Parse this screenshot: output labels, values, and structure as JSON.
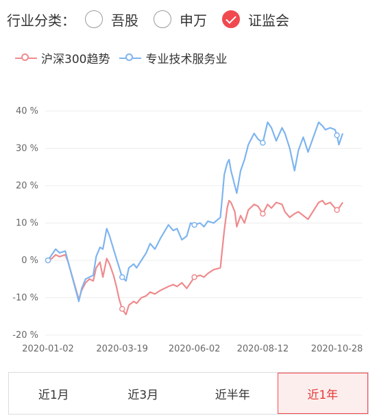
{
  "filter": {
    "title": "行业分类：",
    "options": [
      {
        "label": "吾股",
        "selected": false
      },
      {
        "label": "申万",
        "selected": false
      },
      {
        "label": "证监会",
        "selected": true
      }
    ]
  },
  "legend": [
    {
      "name": "沪深300趋势",
      "color": "#ef8a8d"
    },
    {
      "name": "专业技术服务业",
      "color": "#7db4ef"
    }
  ],
  "chart_data": {
    "type": "line",
    "title": "",
    "xlabel": "",
    "ylabel": "",
    "x_ticks": [
      "2020-01-02",
      "2020-03-19",
      "2020-06-02",
      "2020-08-12",
      "2020-10-28"
    ],
    "y_ticks": [
      40,
      30,
      20,
      10,
      0,
      -10,
      -20
    ],
    "y_tick_labels": [
      "40 %",
      "30 %",
      "20 %",
      "10 %",
      "0 %",
      "-10 %",
      "-20 %"
    ],
    "ylim": [
      -20,
      40
    ],
    "grid": true,
    "series": [
      {
        "name": "沪深300趋势",
        "color": "#ef8a8d",
        "points": [
          [
            "2020-01-02",
            0
          ],
          [
            "2020-01-06",
            0.5
          ],
          [
            "2020-01-10",
            1.5
          ],
          [
            "2020-01-14",
            1
          ],
          [
            "2020-01-20",
            1.5
          ],
          [
            "2020-01-23",
            -0.5
          ],
          [
            "2020-02-03",
            -10.5
          ],
          [
            "2020-02-06",
            -8
          ],
          [
            "2020-02-10",
            -6
          ],
          [
            "2020-02-14",
            -5
          ],
          [
            "2020-02-18",
            -5.5
          ],
          [
            "2020-02-21",
            -2
          ],
          [
            "2020-02-25",
            -0.5
          ],
          [
            "2020-02-28",
            -4.5
          ],
          [
            "2020-03-03",
            0.5
          ],
          [
            "2020-03-06",
            -1
          ],
          [
            "2020-03-10",
            -4
          ],
          [
            "2020-03-13",
            -7
          ],
          [
            "2020-03-16",
            -10.5
          ],
          [
            "2020-03-19",
            -13
          ],
          [
            "2020-03-23",
            -14.5
          ],
          [
            "2020-03-26",
            -12
          ],
          [
            "2020-03-31",
            -11
          ],
          [
            "2020-04-03",
            -11.5
          ],
          [
            "2020-04-08",
            -10
          ],
          [
            "2020-04-13",
            -9.5
          ],
          [
            "2020-04-17",
            -8.5
          ],
          [
            "2020-04-22",
            -9
          ],
          [
            "2020-04-28",
            -8
          ],
          [
            "2020-05-06",
            -7
          ],
          [
            "2020-05-11",
            -6.5
          ],
          [
            "2020-05-15",
            -7
          ],
          [
            "2020-05-20",
            -6
          ],
          [
            "2020-05-25",
            -7.5
          ],
          [
            "2020-05-29",
            -6
          ],
          [
            "2020-06-02",
            -4.5
          ],
          [
            "2020-06-08",
            -4
          ],
          [
            "2020-06-12",
            -4.5
          ],
          [
            "2020-06-16",
            -3.5
          ],
          [
            "2020-06-22",
            -2.5
          ],
          [
            "2020-06-29",
            -2
          ],
          [
            "2020-07-01",
            3
          ],
          [
            "2020-07-03",
            8
          ],
          [
            "2020-07-06",
            14
          ],
          [
            "2020-07-08",
            16
          ],
          [
            "2020-07-10",
            15.5
          ],
          [
            "2020-07-14",
            13
          ],
          [
            "2020-07-16",
            9
          ],
          [
            "2020-07-20",
            12
          ],
          [
            "2020-07-24",
            10
          ],
          [
            "2020-07-28",
            13.5
          ],
          [
            "2020-08-03",
            15
          ],
          [
            "2020-08-07",
            14.5
          ],
          [
            "2020-08-12",
            12.5
          ],
          [
            "2020-08-17",
            15
          ],
          [
            "2020-08-21",
            14
          ],
          [
            "2020-08-26",
            15.5
          ],
          [
            "2020-09-01",
            15
          ],
          [
            "2020-09-04",
            13
          ],
          [
            "2020-09-09",
            11.5
          ],
          [
            "2020-09-14",
            12.5
          ],
          [
            "2020-09-18",
            13
          ],
          [
            "2020-09-23",
            12
          ],
          [
            "2020-09-28",
            11
          ],
          [
            "2020-10-09",
            15.5
          ],
          [
            "2020-10-13",
            16
          ],
          [
            "2020-10-16",
            15
          ],
          [
            "2020-10-21",
            15.5
          ],
          [
            "2020-10-26",
            14
          ],
          [
            "2020-10-28",
            13.5
          ],
          [
            "2020-10-30",
            14
          ],
          [
            "2020-11-03",
            15.5
          ]
        ],
        "markers": [
          [
            "2020-01-02",
            0
          ],
          [
            "2020-03-19",
            -13
          ],
          [
            "2020-06-02",
            -4.5
          ],
          [
            "2020-08-12",
            12.5
          ],
          [
            "2020-10-28",
            13.5
          ]
        ]
      },
      {
        "name": "专业技术服务业",
        "color": "#7db4ef",
        "points": [
          [
            "2020-01-02",
            0
          ],
          [
            "2020-01-06",
            1.5
          ],
          [
            "2020-01-10",
            3
          ],
          [
            "2020-01-14",
            2
          ],
          [
            "2020-01-20",
            2.5
          ],
          [
            "2020-01-23",
            -0.5
          ],
          [
            "2020-02-03",
            -11
          ],
          [
            "2020-02-06",
            -7.5
          ],
          [
            "2020-02-10",
            -5
          ],
          [
            "2020-02-14",
            -4.5
          ],
          [
            "2020-02-18",
            -4
          ],
          [
            "2020-02-21",
            1
          ],
          [
            "2020-02-25",
            3.5
          ],
          [
            "2020-02-28",
            3
          ],
          [
            "2020-03-03",
            8.5
          ],
          [
            "2020-03-06",
            6.5
          ],
          [
            "2020-03-10",
            3
          ],
          [
            "2020-03-13",
            0.5
          ],
          [
            "2020-03-16",
            -2
          ],
          [
            "2020-03-19",
            -4.5
          ],
          [
            "2020-03-23",
            -5.5
          ],
          [
            "2020-03-26",
            -2
          ],
          [
            "2020-03-31",
            -1
          ],
          [
            "2020-04-03",
            -2
          ],
          [
            "2020-04-08",
            0
          ],
          [
            "2020-04-13",
            2
          ],
          [
            "2020-04-17",
            4.5
          ],
          [
            "2020-04-22",
            3
          ],
          [
            "2020-04-28",
            6
          ],
          [
            "2020-05-06",
            9.5
          ],
          [
            "2020-05-11",
            8
          ],
          [
            "2020-05-15",
            8.5
          ],
          [
            "2020-05-20",
            5.5
          ],
          [
            "2020-05-25",
            6.5
          ],
          [
            "2020-05-29",
            10
          ],
          [
            "2020-06-02",
            9.5
          ],
          [
            "2020-06-08",
            10
          ],
          [
            "2020-06-12",
            9
          ],
          [
            "2020-06-16",
            10.5
          ],
          [
            "2020-06-22",
            10
          ],
          [
            "2020-06-29",
            11.5
          ],
          [
            "2020-07-01",
            17
          ],
          [
            "2020-07-03",
            23
          ],
          [
            "2020-07-06",
            26
          ],
          [
            "2020-07-08",
            27
          ],
          [
            "2020-07-10",
            24
          ],
          [
            "2020-07-14",
            20
          ],
          [
            "2020-07-16",
            18
          ],
          [
            "2020-07-20",
            24
          ],
          [
            "2020-07-24",
            27
          ],
          [
            "2020-07-28",
            31
          ],
          [
            "2020-08-03",
            34
          ],
          [
            "2020-08-07",
            32.5
          ],
          [
            "2020-08-12",
            31.5
          ],
          [
            "2020-08-17",
            37
          ],
          [
            "2020-08-21",
            35.5
          ],
          [
            "2020-08-26",
            32
          ],
          [
            "2020-09-01",
            35.5
          ],
          [
            "2020-09-04",
            34
          ],
          [
            "2020-09-09",
            30
          ],
          [
            "2020-09-14",
            24
          ],
          [
            "2020-09-18",
            29.5
          ],
          [
            "2020-09-23",
            33
          ],
          [
            "2020-09-28",
            29
          ],
          [
            "2020-10-09",
            37
          ],
          [
            "2020-10-13",
            36
          ],
          [
            "2020-10-16",
            35
          ],
          [
            "2020-10-21",
            35.5
          ],
          [
            "2020-10-26",
            35
          ],
          [
            "2020-10-28",
            33.5
          ],
          [
            "2020-10-30",
            31
          ],
          [
            "2020-11-03",
            34
          ]
        ],
        "markers": [
          [
            "2020-01-02",
            0
          ],
          [
            "2020-03-19",
            -4.5
          ],
          [
            "2020-06-02",
            9.5
          ],
          [
            "2020-08-12",
            31.5
          ],
          [
            "2020-10-28",
            33.5
          ]
        ]
      }
    ]
  },
  "periods": [
    {
      "label": "近1月",
      "active": false
    },
    {
      "label": "近3月",
      "active": false
    },
    {
      "label": "近半年",
      "active": false
    },
    {
      "label": "近1年",
      "active": true
    }
  ]
}
